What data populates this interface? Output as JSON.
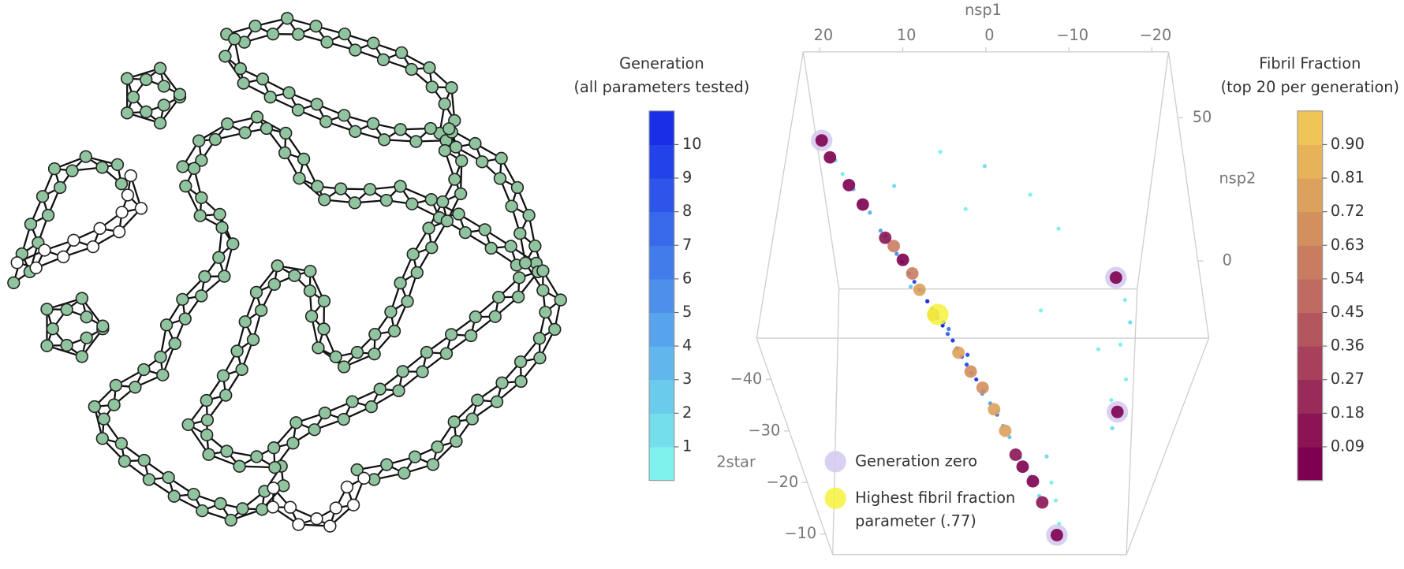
{
  "chart_data": {
    "type": "scatter3d",
    "xlabel": "nsp1",
    "ylabel": "nsp2",
    "zlabel": "2star",
    "xlim": [
      22,
      -22
    ],
    "ylim": [
      -27,
      73
    ],
    "zlim": [
      -48,
      -6
    ],
    "xticks": [
      20,
      10,
      0,
      {
        "value": -10,
        "label": "−10"
      },
      {
        "value": -20,
        "label": "−20"
      }
    ],
    "yticks": [
      50,
      0
    ],
    "zticks": [
      {
        "value": -40,
        "label": "−40"
      },
      {
        "value": -30,
        "label": "−30"
      },
      {
        "value": -20,
        "label": "−20"
      },
      {
        "value": -10,
        "label": "−10"
      }
    ],
    "parameters": {
      "x": [
        17.0,
        16.2,
        15.0,
        14.2,
        13.2,
        12.0,
        11.2,
        10.2,
        9.6,
        8.8,
        8.2,
        7.6,
        6.7,
        6.1,
        5.5,
        4.9,
        4.3,
        3.7,
        3.2,
        2.6,
        2.0,
        1.4,
        0.8,
        -0.1,
        -1.0,
        -1.9,
        -2.7,
        -3.6,
        -5.1,
        -6.6,
        -8.0,
        7.0,
        9.0,
        4.0,
        2.0,
        0.0,
        -2.0,
        11.0,
        5.0,
        5,
        0,
        -5,
        -8,
        10,
        2,
        -14,
        -14.5,
        -15,
        -14,
        -15,
        -14,
        -16,
        -15,
        -11,
        -10,
        -9,
        -8,
        -12,
        -6
      ],
      "y": [
        40.5,
        38.0,
        35.5,
        33.0,
        31.5,
        28.0,
        26.5,
        24.0,
        22.5,
        20.5,
        19.0,
        17.5,
        15.5,
        14.0,
        12.5,
        11.0,
        9.5,
        8.5,
        7.0,
        5.5,
        4.0,
        2.5,
        1.5,
        -0.5,
        -3.0,
        -5.0,
        -7.0,
        -9.0,
        -12.8,
        -16.3,
        -19.9,
        12.0,
        25.0,
        4.0,
        12.0,
        -6.0,
        3.0,
        20.0,
        18.0,
        40,
        35,
        25,
        15,
        30,
        20,
        -5,
        -10,
        -16,
        -22,
        -27,
        -27,
        -27,
        -26,
        -27,
        -26,
        -27,
        -25,
        -20,
        -10
      ],
      "z": [
        -45.2,
        -44.0,
        -42.5,
        -41.5,
        -40.3,
        -38.8,
        -37.7,
        -36.6,
        -35.9,
        -34.8,
        -34.0,
        -33.3,
        -32.2,
        -31.5,
        -30.7,
        -30.0,
        -29.2,
        -28.5,
        -27.8,
        -27.0,
        -26.3,
        -25.5,
        -24.8,
        -23.7,
        -22.6,
        -21.5,
        -20.4,
        -19.3,
        -17.4,
        -15.6,
        -13.7,
        -36.0,
        -30.0,
        -33.0,
        -24.0,
        -26.0,
        -18.0,
        -42.0,
        -27.0,
        -47,
        -47,
        -47,
        -46,
        -46,
        -47,
        -47,
        -46,
        -45,
        -44,
        -40,
        -36,
        -33,
        -30,
        -12,
        -16,
        -20,
        -24,
        -42,
        -44
      ],
      "generation": [
        1,
        0,
        2,
        1,
        3,
        4,
        2,
        5,
        6,
        7,
        8,
        9,
        10,
        9,
        8,
        10,
        7,
        9,
        6,
        10,
        8,
        5,
        9,
        7,
        4,
        6,
        3,
        2,
        1,
        0,
        1,
        3,
        2,
        6,
        8,
        4,
        1,
        5,
        7,
        0,
        1,
        0,
        0,
        1,
        0,
        0,
        0,
        1,
        0,
        0,
        0,
        0,
        1,
        0,
        0,
        0,
        1,
        0,
        0
      ]
    },
    "top20": {
      "x": [
        18.5,
        17.5,
        15.5,
        14,
        11.5,
        10.5,
        9.5,
        8.5,
        7.6,
        6,
        3,
        1.5,
        0,
        -1.5,
        -3,
        -4.5,
        -5.5,
        -7,
        -8.5,
        -11,
        -13.6,
        -15
      ],
      "y": [
        44,
        40,
        36,
        33,
        27,
        25,
        23,
        22,
        17.5,
        13,
        6,
        3,
        0,
        -4,
        -8,
        -12,
        -14.5,
        -17,
        -21,
        -27,
        -4,
        -27
      ],
      "z": [
        -47,
        -46,
        -43,
        -41,
        -38,
        -37.5,
        -36,
        -34,
        -33.3,
        -31,
        -27.5,
        -25.5,
        -24,
        -22,
        -20,
        -17.5,
        -16.5,
        -15,
        -13,
        -9.8,
        -47,
        -33.7
      ],
      "fibril_fraction": [
        0.05,
        0.04,
        0.08,
        0.06,
        0.1,
        0.55,
        0.07,
        0.6,
        0.72,
        0.78,
        0.74,
        0.7,
        0.68,
        0.75,
        0.72,
        0.12,
        0.08,
        0.05,
        0.1,
        0.04,
        0.05,
        0.06
      ]
    },
    "generation_zero": {
      "x": [
        18.5,
        -13.6,
        -15,
        -11
      ],
      "y": [
        44,
        -4,
        -27,
        -27
      ],
      "z": [
        -47,
        -47,
        -33.7,
        -9.8
      ]
    },
    "highest": {
      "x": [
        5.5
      ],
      "y": [
        14
      ],
      "z": [
        -30.5
      ],
      "fibril_fraction": [
        0.77
      ]
    },
    "legend": [
      {
        "label": [
          "Generation zero"
        ],
        "color": "#d4c8f0"
      },
      {
        "label": [
          "Highest fibril fraction",
          "parameter (.77)"
        ],
        "color": "#f5f23c"
      }
    ],
    "colorbars": [
      {
        "title": [
          "Generation",
          "(all parameters tested)"
        ],
        "lim": [
          0,
          11
        ],
        "ticks": [
          1,
          2,
          3,
          4,
          5,
          6,
          7,
          8,
          9,
          10
        ],
        "colors": [
          "#7ff2ee",
          "#1a2ee8"
        ]
      },
      {
        "title": [
          "Fibril Fraction",
          "(top 20 per generation)"
        ],
        "lim": [
          0,
          0.99
        ],
        "ticks": [
          0.09,
          0.18,
          0.27,
          0.36,
          0.45,
          0.54,
          0.63,
          0.72,
          0.81,
          {
            "value": 0.9,
            "label": "0.90"
          }
        ],
        "colors": [
          "#7e0050",
          "#c06b62",
          "#efc558"
        ]
      }
    ]
  }
}
